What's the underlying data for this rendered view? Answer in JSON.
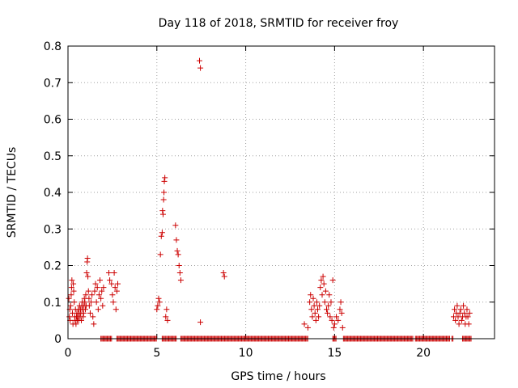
{
  "chart_data": {
    "type": "scatter",
    "title": "Day 118 of 2018, SRMTID for receiver froy",
    "xlabel": "GPS time / hours",
    "ylabel": "SRMTID / TECUs",
    "xlim": [
      0,
      24
    ],
    "ylim": [
      0,
      0.8
    ],
    "xticks": [
      0,
      5,
      10,
      15,
      20
    ],
    "xtick_labels": [
      "0",
      "5",
      "10",
      "15",
      "20"
    ],
    "yticks": [
      0,
      0.1,
      0.2,
      0.3,
      0.4,
      0.5,
      0.6,
      0.7,
      0.8
    ],
    "ytick_labels": [
      "0",
      "0.1",
      "0.2",
      "0.3",
      "0.4",
      "0.5",
      "0.6",
      "0.7",
      "0.8"
    ],
    "grid": true,
    "marker": "+",
    "color": "#cc0000",
    "series": [
      {
        "name": "SRMTID",
        "points": [
          [
            0.05,
            0.11
          ],
          [
            0.08,
            0.06
          ],
          [
            0.1,
            0.08
          ],
          [
            0.12,
            0.05
          ],
          [
            0.15,
            0.09
          ],
          [
            0.18,
            0.12
          ],
          [
            0.2,
            0.14
          ],
          [
            0.22,
            0.16
          ],
          [
            0.25,
            0.07
          ],
          [
            0.28,
            0.04
          ],
          [
            0.3,
            0.15
          ],
          [
            0.32,
            0.13
          ],
          [
            0.35,
            0.1
          ],
          [
            0.38,
            0.06
          ],
          [
            0.4,
            0.05
          ],
          [
            0.42,
            0.08
          ],
          [
            0.45,
            0.04
          ],
          [
            0.48,
            0.06
          ],
          [
            0.5,
            0.07
          ],
          [
            0.52,
            0.05
          ],
          [
            0.55,
            0.06
          ],
          [
            0.58,
            0.08
          ],
          [
            0.6,
            0.05
          ],
          [
            0.62,
            0.07
          ],
          [
            0.65,
            0.09
          ],
          [
            0.68,
            0.06
          ],
          [
            0.7,
            0.08
          ],
          [
            0.72,
            0.07
          ],
          [
            0.75,
            0.05
          ],
          [
            0.78,
            0.09
          ],
          [
            0.8,
            0.1
          ],
          [
            0.82,
            0.08
          ],
          [
            0.85,
            0.06
          ],
          [
            0.88,
            0.07
          ],
          [
            0.9,
            0.09
          ],
          [
            0.92,
            0.11
          ],
          [
            0.95,
            0.1
          ],
          [
            0.98,
            0.08
          ],
          [
            1.0,
            0.12
          ],
          [
            1.02,
            0.09
          ],
          [
            1.05,
            0.18
          ],
          [
            1.08,
            0.21
          ],
          [
            1.1,
            0.22
          ],
          [
            1.12,
            0.17
          ],
          [
            1.15,
            0.13
          ],
          [
            1.18,
            0.11
          ],
          [
            1.2,
            0.09
          ],
          [
            1.25,
            0.07
          ],
          [
            1.3,
            0.1
          ],
          [
            1.35,
            0.12
          ],
          [
            1.4,
            0.06
          ],
          [
            1.45,
            0.04
          ],
          [
            1.5,
            0.13
          ],
          [
            1.55,
            0.15
          ],
          [
            1.6,
            0.1
          ],
          [
            1.65,
            0.14
          ],
          [
            1.7,
            0.08
          ],
          [
            1.75,
            0.12
          ],
          [
            1.8,
            0.16
          ],
          [
            1.85,
            0.11
          ],
          [
            1.9,
            0.13
          ],
          [
            1.95,
            0.09
          ],
          [
            2.0,
            0.14
          ],
          [
            2.3,
            0.18
          ],
          [
            2.35,
            0.16
          ],
          [
            2.45,
            0.15
          ],
          [
            2.5,
            0.12
          ],
          [
            2.55,
            0.1
          ],
          [
            2.6,
            0.18
          ],
          [
            2.65,
            0.14
          ],
          [
            2.7,
            0.08
          ],
          [
            2.75,
            0.13
          ],
          [
            2.8,
            0.15
          ],
          [
            5.0,
            0.08
          ],
          [
            5.05,
            0.09
          ],
          [
            5.1,
            0.11
          ],
          [
            5.15,
            0.1
          ],
          [
            5.2,
            0.23
          ],
          [
            5.25,
            0.28
          ],
          [
            5.3,
            0.29
          ],
          [
            5.32,
            0.35
          ],
          [
            5.35,
            0.34
          ],
          [
            5.38,
            0.38
          ],
          [
            5.4,
            0.4
          ],
          [
            5.42,
            0.43
          ],
          [
            5.45,
            0.44
          ],
          [
            5.5,
            0.06
          ],
          [
            5.55,
            0.08
          ],
          [
            5.6,
            0.05
          ],
          [
            6.05,
            0.31
          ],
          [
            6.1,
            0.27
          ],
          [
            6.15,
            0.24
          ],
          [
            6.2,
            0.23
          ],
          [
            6.25,
            0.2
          ],
          [
            6.3,
            0.18
          ],
          [
            6.35,
            0.16
          ],
          [
            7.4,
            0.76
          ],
          [
            7.45,
            0.74
          ],
          [
            7.45,
            0.045
          ],
          [
            8.75,
            0.18
          ],
          [
            8.8,
            0.17
          ],
          [
            13.3,
            0.04
          ],
          [
            13.5,
            0.03
          ],
          [
            13.6,
            0.1
          ],
          [
            13.65,
            0.12
          ],
          [
            13.7,
            0.08
          ],
          [
            13.75,
            0.06
          ],
          [
            13.8,
            0.11
          ],
          [
            13.85,
            0.09
          ],
          [
            13.9,
            0.07
          ],
          [
            13.95,
            0.05
          ],
          [
            14.0,
            0.1
          ],
          [
            14.05,
            0.08
          ],
          [
            14.1,
            0.06
          ],
          [
            14.15,
            0.09
          ],
          [
            14.2,
            0.14
          ],
          [
            14.25,
            0.16
          ],
          [
            14.3,
            0.12
          ],
          [
            14.35,
            0.17
          ],
          [
            14.4,
            0.15
          ],
          [
            14.45,
            0.1
          ],
          [
            14.5,
            0.13
          ],
          [
            14.55,
            0.08
          ],
          [
            14.6,
            0.07
          ],
          [
            14.65,
            0.09
          ],
          [
            14.7,
            0.12
          ],
          [
            14.75,
            0.06
          ],
          [
            14.8,
            0.1
          ],
          [
            14.85,
            0.05
          ],
          [
            14.9,
            0.16
          ],
          [
            14.95,
            0.03
          ],
          [
            15.0,
            0.04
          ],
          [
            15.1,
            0.06
          ],
          [
            15.2,
            0.05
          ],
          [
            15.3,
            0.08
          ],
          [
            15.35,
            0.1
          ],
          [
            15.4,
            0.07
          ],
          [
            15.45,
            0.03
          ],
          [
            21.7,
            0.06
          ],
          [
            21.75,
            0.08
          ],
          [
            21.8,
            0.05
          ],
          [
            21.85,
            0.07
          ],
          [
            21.9,
            0.09
          ],
          [
            21.95,
            0.06
          ],
          [
            22.0,
            0.04
          ],
          [
            22.05,
            0.07
          ],
          [
            22.1,
            0.08
          ],
          [
            22.15,
            0.05
          ],
          [
            22.2,
            0.06
          ],
          [
            22.25,
            0.09
          ],
          [
            22.3,
            0.07
          ],
          [
            22.35,
            0.04
          ],
          [
            22.4,
            0.06
          ],
          [
            22.45,
            0.08
          ],
          [
            22.5,
            0.06
          ],
          [
            22.55,
            0.04
          ],
          [
            22.6,
            0.07
          ]
        ],
        "zero_runs": [
          [
            1.85,
            2.45
          ],
          [
            2.75,
            5.0
          ],
          [
            5.3,
            5.5
          ],
          [
            5.55,
            6.1
          ],
          [
            6.35,
            13.5
          ],
          [
            14.9,
            15.1
          ],
          [
            15.5,
            19.4
          ],
          [
            19.55,
            21.5
          ],
          [
            21.6,
            21.7
          ],
          [
            22.2,
            22.7
          ]
        ]
      }
    ]
  }
}
